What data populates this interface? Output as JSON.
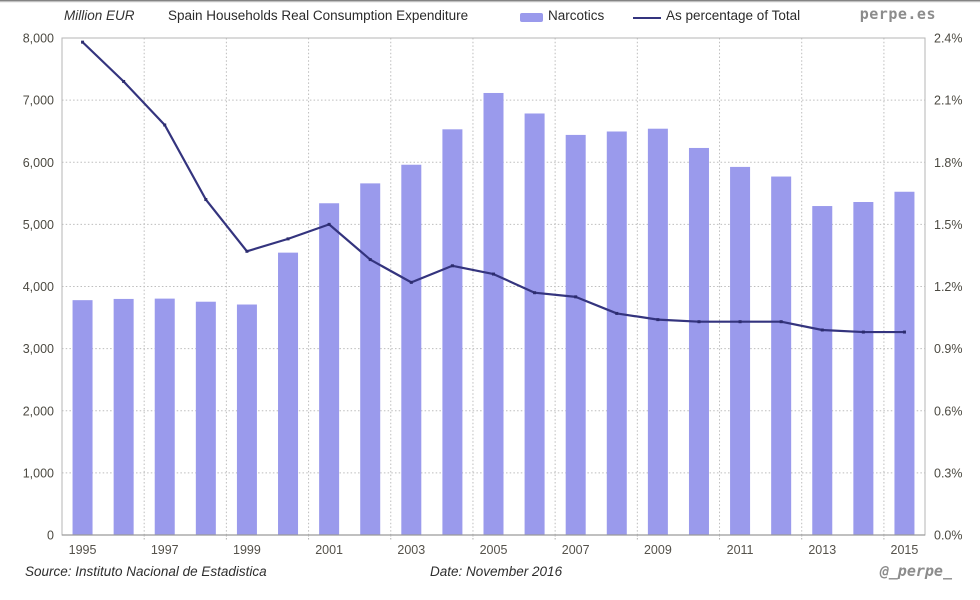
{
  "header": {
    "axis_unit_label": "Million EUR",
    "title": "Spain Households Real Consumption Expenditure",
    "brand": "perpe.es"
  },
  "footer": {
    "source": "Source: Instituto Nacional de Estadistica",
    "date": "Date: November 2016",
    "handle": "@_perpe_"
  },
  "chart_data": {
    "type": "bar",
    "title": "Spain Households Real Consumption Expenditure",
    "categories": [
      1995,
      1996,
      1997,
      1998,
      1999,
      2000,
      2001,
      2002,
      2003,
      2004,
      2005,
      2006,
      2007,
      2008,
      2009,
      2010,
      2011,
      2012,
      2013,
      2014,
      2015
    ],
    "x_tick_labels": [
      "1995",
      "1997",
      "1999",
      "2001",
      "2003",
      "2005",
      "2007",
      "2009",
      "2011",
      "2013",
      "2015"
    ],
    "series": [
      {
        "name": "Narcotics",
        "type": "bar",
        "axis": "left",
        "unit": "Million EUR",
        "color": "#9a9aec",
        "values": [
          3780,
          3800,
          3805,
          3755,
          3710,
          4545,
          5340,
          5660,
          5960,
          6530,
          7115,
          6785,
          6440,
          6495,
          6540,
          6230,
          5925,
          5770,
          5295,
          5360,
          5525
        ]
      },
      {
        "name": "As percentage of Total",
        "type": "line",
        "axis": "right",
        "unit": "%",
        "color": "#34347e",
        "values": [
          2.38,
          2.19,
          1.98,
          1.62,
          1.37,
          1.43,
          1.5,
          1.33,
          1.22,
          1.3,
          1.26,
          1.17,
          1.15,
          1.07,
          1.04,
          1.03,
          1.03,
          1.03,
          0.99,
          0.98,
          0.98
        ]
      }
    ],
    "left_axis": {
      "label": "Million EUR",
      "min": 0,
      "max": 8000,
      "step": 1000,
      "tick_labels": [
        "8,000",
        "7,000",
        "6,000",
        "5,000",
        "4,000",
        "3,000",
        "2,000",
        "1,000",
        "0"
      ]
    },
    "right_axis": {
      "label": "As percentage of Total",
      "min": 0,
      "max": 2.4,
      "step": 0.3,
      "tick_labels": [
        "2.4%",
        "2.1%",
        "1.8%",
        "1.5%",
        "1.2%",
        "0.9%",
        "0.6%",
        "0.3%",
        "0.0%"
      ]
    },
    "grid": {
      "horizontal": true,
      "vertical": true,
      "style": "dotted",
      "color": "#bdbdbd"
    },
    "legend_position": "top",
    "colors": {
      "bar": "#9a9aec",
      "line": "#34347e",
      "border": "#b5b5b5",
      "axis_text": "#4c4a42",
      "brand_gray": "#8c8c8c"
    }
  }
}
